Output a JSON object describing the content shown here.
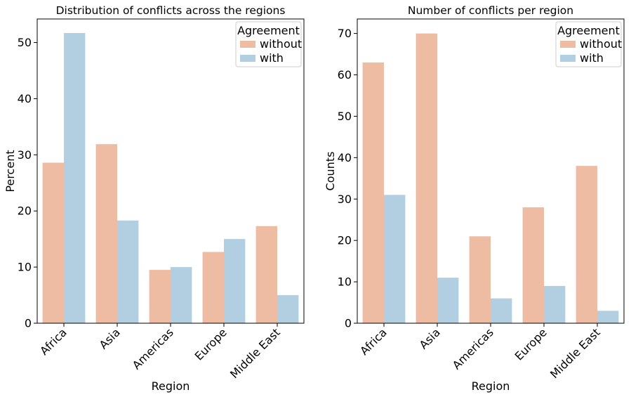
{
  "chart_data": [
    {
      "type": "bar",
      "title": "Distribution of conflicts across the regions",
      "xlabel": "Region",
      "ylabel": "Percent",
      "categories": [
        "Africa",
        "Asia",
        "Americas",
        "Europe",
        "Middle East"
      ],
      "series": [
        {
          "name": "without",
          "values": [
            28.6,
            31.9,
            9.5,
            12.7,
            17.3
          ]
        },
        {
          "name": "with",
          "values": [
            51.7,
            18.3,
            10.0,
            15.0,
            5.0
          ]
        }
      ],
      "ylim": [
        0,
        54.2
      ],
      "yticks": [
        0,
        10,
        20,
        30,
        40,
        50
      ],
      "legend": {
        "title": "Agreement",
        "placement": "top-right"
      },
      "grid": false
    },
    {
      "type": "bar",
      "title": "Number of conflicts per region",
      "xlabel": "Region",
      "ylabel": "Counts",
      "categories": [
        "Africa",
        "Asia",
        "Americas",
        "Europe",
        "Middle East"
      ],
      "series": [
        {
          "name": "without",
          "values": [
            63,
            70,
            21,
            28,
            38
          ]
        },
        {
          "name": "with",
          "values": [
            31,
            11,
            6,
            9,
            3
          ]
        }
      ],
      "ylim": [
        0,
        73.5
      ],
      "yticks": [
        0,
        10,
        20,
        30,
        40,
        50,
        60,
        70
      ],
      "legend": {
        "title": "Agreement",
        "placement": "top-right"
      },
      "grid": false
    }
  ],
  "colors": {
    "without": "#EEBBA3",
    "with": "#B1CFE0"
  }
}
